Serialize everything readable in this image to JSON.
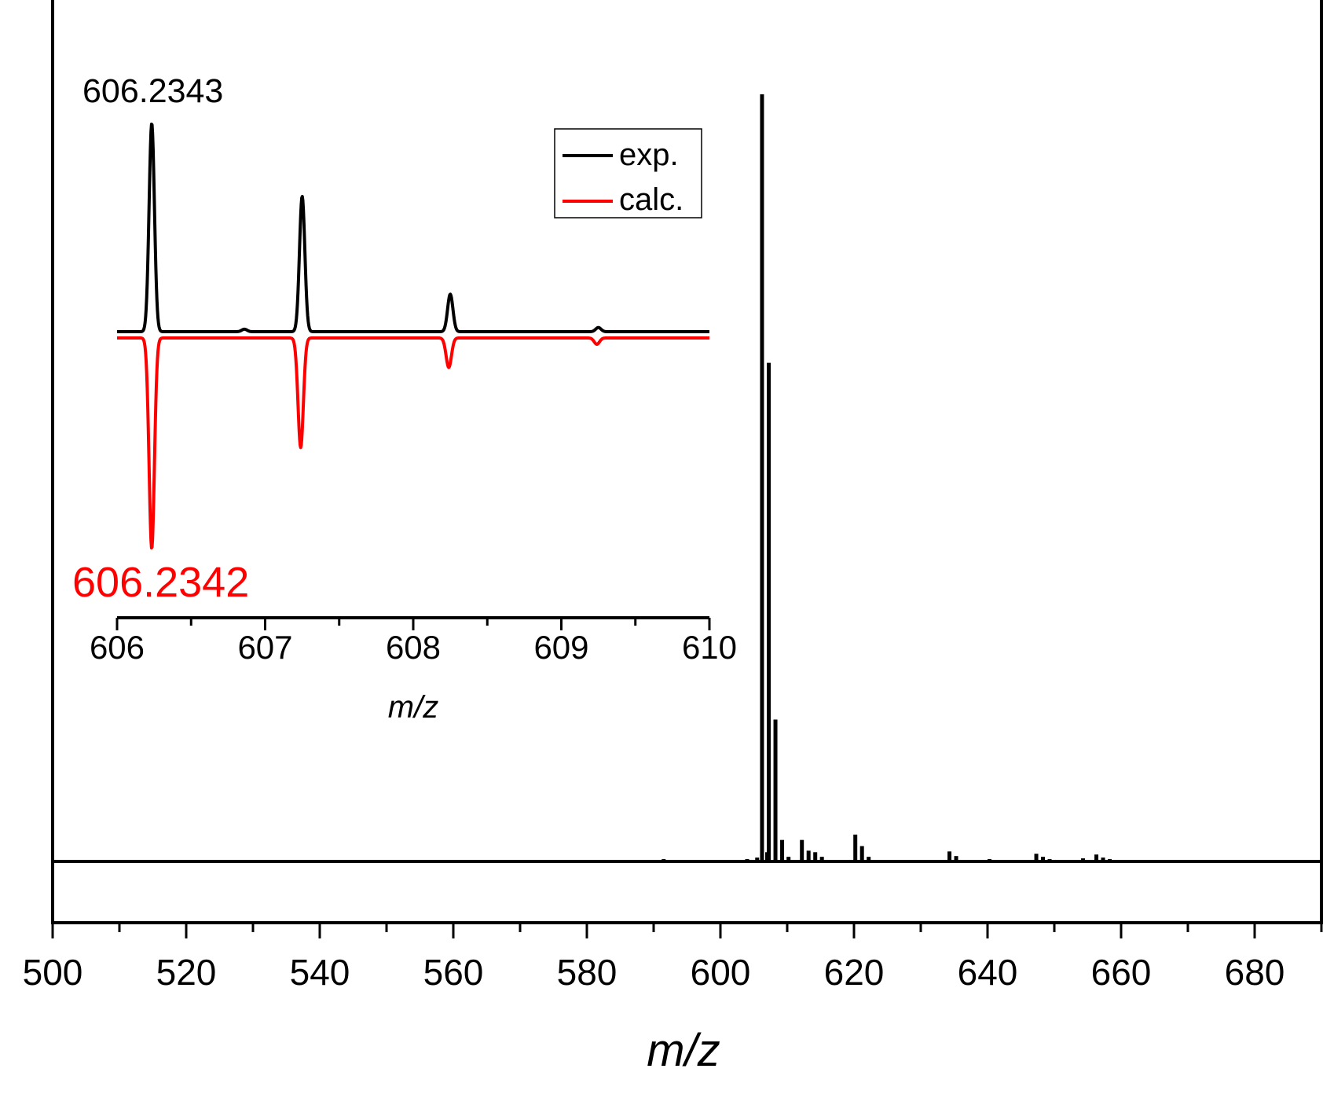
{
  "chart_data": [
    {
      "type": "line",
      "role": "main",
      "xlabel": "m/z",
      "ylabel": "",
      "xlim": [
        500,
        690
      ],
      "ylim": [
        -0.08,
        1.0
      ],
      "x_ticks": [
        500,
        520,
        540,
        560,
        580,
        600,
        620,
        640,
        660,
        680
      ],
      "tick_labels": [
        "500",
        "520",
        "540",
        "560",
        "580",
        "600",
        "620",
        "640",
        "660",
        "680"
      ],
      "minor_tick_step": 10,
      "grid": false,
      "series": [
        {
          "color": "#000000",
          "peaks": [
            [
              581.5,
              0.002
            ],
            [
              591.5,
              0.003
            ],
            [
              593.0,
              0.002
            ],
            [
              604.0,
              0.003
            ],
            [
              605.5,
              0.005
            ],
            [
              606.23,
              1.0
            ],
            [
              607.0,
              0.012
            ],
            [
              607.24,
              0.65
            ],
            [
              608.24,
              0.185
            ],
            [
              609.24,
              0.028
            ],
            [
              610.2,
              0.006
            ],
            [
              612.2,
              0.028
            ],
            [
              613.2,
              0.014
            ],
            [
              614.2,
              0.012
            ],
            [
              615.2,
              0.006
            ],
            [
              620.2,
              0.035
            ],
            [
              621.2,
              0.02
            ],
            [
              622.2,
              0.006
            ],
            [
              634.3,
              0.013
            ],
            [
              635.3,
              0.007
            ],
            [
              640.3,
              0.003
            ],
            [
              647.3,
              0.01
            ],
            [
              648.3,
              0.006
            ],
            [
              649.3,
              0.003
            ],
            [
              654.3,
              0.004
            ],
            [
              656.3,
              0.009
            ],
            [
              657.3,
              0.005
            ],
            [
              658.3,
              0.003
            ],
            [
              662.3,
              0.002
            ],
            [
              676.3,
              0.002
            ],
            [
              682.3,
              0.002
            ],
            [
              686.3,
              0.002
            ]
          ]
        }
      ]
    },
    {
      "type": "line",
      "role": "inset",
      "xlabel": "m/z",
      "xlim": [
        606,
        610
      ],
      "ylim": [
        -1.0,
        1.0
      ],
      "x_ticks": [
        606,
        607,
        608,
        609,
        610
      ],
      "tick_labels": [
        "606",
        "607",
        "608",
        "609",
        "610"
      ],
      "minor_tick_step": 0.5,
      "legend": {
        "position": "top-right",
        "entries": [
          "exp.",
          "calc."
        ]
      },
      "annotations": [
        {
          "text": "606.2343",
          "color": "#000000"
        },
        {
          "text": "606.2342",
          "color": "#ff0000"
        }
      ],
      "series": [
        {
          "name": "exp.",
          "color": "#000000",
          "peaks": [
            [
              606.2343,
              1.0
            ],
            [
              606.86,
              0.012
            ],
            [
              607.25,
              0.65
            ],
            [
              608.25,
              0.18
            ],
            [
              609.25,
              0.02
            ]
          ]
        },
        {
          "name": "calc.",
          "color": "#ff0000",
          "peaks": [
            [
              606.2342,
              -1.0
            ],
            [
              607.24,
              -0.52
            ],
            [
              608.24,
              -0.14
            ],
            [
              609.24,
              -0.03
            ]
          ]
        }
      ]
    }
  ]
}
